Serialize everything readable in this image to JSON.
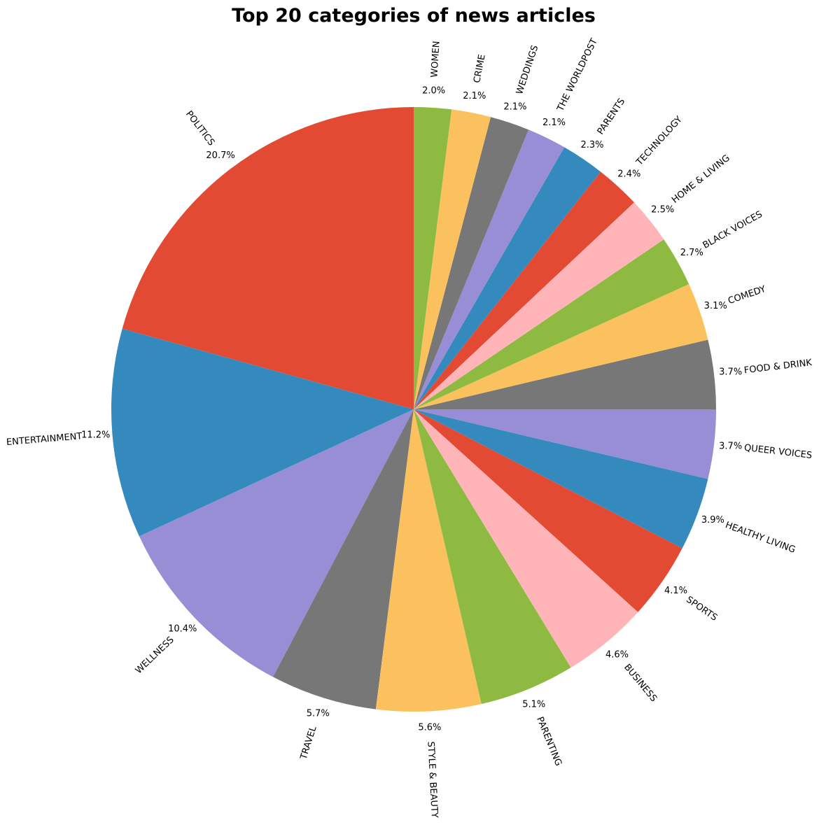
{
  "chart_data": {
    "type": "pie",
    "title": "Top 20 categories of news articles",
    "start_angle_deg": 90,
    "direction": "counterclockwise",
    "slices": [
      {
        "label": "POLITICS",
        "value": 20.7,
        "pct_label": "20.7%",
        "color": "#E24A33"
      },
      {
        "label": "ENTERTAINMENT",
        "value": 11.2,
        "pct_label": "11.2%",
        "color": "#348ABD"
      },
      {
        "label": "WELLNESS",
        "value": 10.4,
        "pct_label": "10.4%",
        "color": "#988ED5"
      },
      {
        "label": "TRAVEL",
        "value": 5.7,
        "pct_label": "5.7%",
        "color": "#777777"
      },
      {
        "label": "STYLE & BEAUTY",
        "value": 5.6,
        "pct_label": "5.6%",
        "color": "#FBC15E"
      },
      {
        "label": "PARENTING",
        "value": 5.1,
        "pct_label": "5.1%",
        "color": "#8EBA42"
      },
      {
        "label": "BUSINESS",
        "value": 4.6,
        "pct_label": "4.6%",
        "color": "#FFB5B8"
      },
      {
        "label": "SPORTS",
        "value": 4.1,
        "pct_label": "4.1%",
        "color": "#E24A33"
      },
      {
        "label": "HEALTHY LIVING",
        "value": 3.9,
        "pct_label": "3.9%",
        "color": "#348ABD"
      },
      {
        "label": "QUEER VOICES",
        "value": 3.7,
        "pct_label": "3.7%",
        "color": "#988ED5"
      },
      {
        "label": "FOOD & DRINK",
        "value": 3.7,
        "pct_label": "3.7%",
        "color": "#777777"
      },
      {
        "label": "COMEDY",
        "value": 3.1,
        "pct_label": "3.1%",
        "color": "#FBC15E"
      },
      {
        "label": "BLACK VOICES",
        "value": 2.7,
        "pct_label": "2.7%",
        "color": "#8EBA42"
      },
      {
        "label": "HOME & LIVING",
        "value": 2.5,
        "pct_label": "2.5%",
        "color": "#FFB5B8"
      },
      {
        "label": "TECHNOLOGY",
        "value": 2.4,
        "pct_label": "2.4%",
        "color": "#E24A33"
      },
      {
        "label": "PARENTS",
        "value": 2.3,
        "pct_label": "2.3%",
        "color": "#348ABD"
      },
      {
        "label": "THE WORLDPOST",
        "value": 2.1,
        "pct_label": "2.1%",
        "color": "#988ED5"
      },
      {
        "label": "WEDDINGS",
        "value": 2.1,
        "pct_label": "2.1%",
        "color": "#777777"
      },
      {
        "label": "CRIME",
        "value": 2.1,
        "pct_label": "2.1%",
        "color": "#FBC15E"
      },
      {
        "label": "WOMEN",
        "value": 2.0,
        "pct_label": "2.0%",
        "color": "#8EBA42"
      }
    ]
  }
}
